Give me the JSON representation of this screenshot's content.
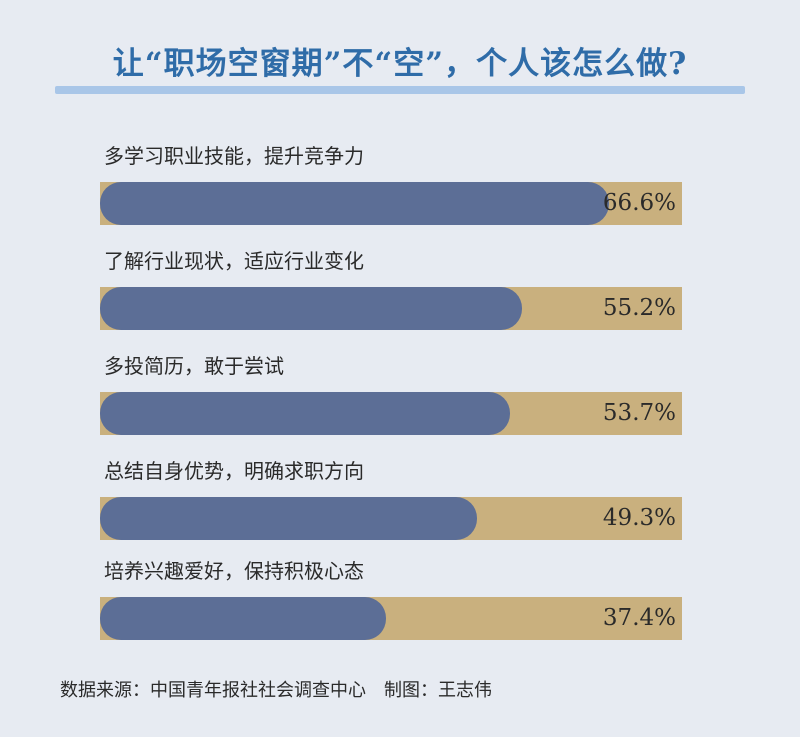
{
  "chart_data": {
    "type": "bar",
    "title": "让“职场空窗期”不“空”，个人该怎么做?",
    "categories": [
      "多学习职业技能，提升竞争力",
      "了解行业现状，适应行业变化",
      "多投简历，敢于尝试",
      "总结自身优势，明确求职方向",
      "培养兴趣爱好，保持积极心态"
    ],
    "values": [
      66.6,
      55.2,
      53.7,
      49.3,
      37.4
    ],
    "value_labels": [
      "66.6%",
      "55.2%",
      "53.7%",
      "49.3%",
      "37.4%"
    ],
    "unit": "%",
    "xlim": [
      0,
      100
    ],
    "orientation": "horizontal",
    "source": "数据来源：中国青年报社社会调查中心　制图：王志伟"
  },
  "colors": {
    "background": "#e7ebf2",
    "title": "#2f6ca8",
    "title_rule": "#a9c6e8",
    "bar_fill": "#5c6e96",
    "bar_track": "#c9b07e"
  }
}
